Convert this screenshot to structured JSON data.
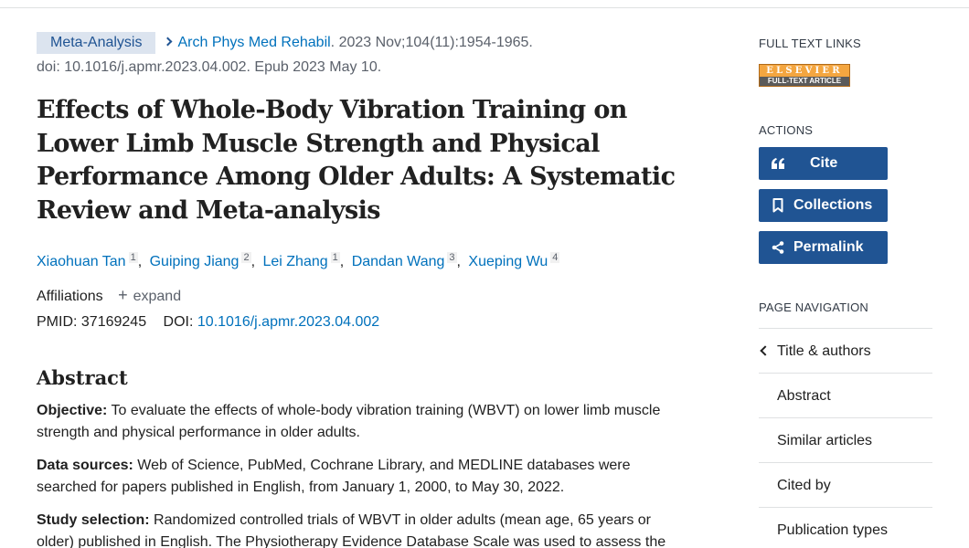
{
  "citation": {
    "article_type": "Meta-Analysis",
    "journal": "Arch Phys Med Rehabil",
    "date_pages": ". 2023 Nov;104(11):1954-1965.",
    "doi_epub": "doi: 10.1016/j.apmr.2023.04.002. Epub 2023 May 10."
  },
  "title": "Effects of Whole-Body Vibration Training on Lower Limb Muscle Strength and Physical Performance Among Older Adults: A Systematic Review and Meta-analysis",
  "authors": [
    {
      "name": "Xiaohuan Tan",
      "aff": "1"
    },
    {
      "name": "Guiping Jiang",
      "aff": "2"
    },
    {
      "name": "Lei Zhang",
      "aff": "1"
    },
    {
      "name": "Dandan Wang",
      "aff": "3"
    },
    {
      "name": "Xueping Wu",
      "aff": "4"
    }
  ],
  "author_sep": ",",
  "affiliations": {
    "label": "Affiliations",
    "plus": "+",
    "expand": "expand"
  },
  "ids": {
    "pmid_label": "PMID:",
    "pmid": "37169245",
    "doi_label": "DOI:",
    "doi": "10.1016/j.apmr.2023.04.002"
  },
  "abstract": {
    "heading": "Abstract",
    "sections": [
      {
        "label": "Objective:",
        "text": " To evaluate the effects of whole-body vibration training (WBVT) on lower limb muscle strength and physical performance in older adults."
      },
      {
        "label": "Data sources:",
        "text": " Web of Science, PubMed, Cochrane Library, and MEDLINE databases were searched for papers published in English, from January 1, 2000, to May 30, 2022."
      },
      {
        "label": "Study selection:",
        "text": " Randomized controlled trials of WBVT in older adults (mean age, 65 years or older) published in English. The Physiotherapy Evidence Database Scale was used to assess the"
      }
    ]
  },
  "sidebar": {
    "full_text_heading": "FULL TEXT LINKS",
    "elsevier_top": "ELSEVIER",
    "elsevier_bottom": "FULL-TEXT ARTICLE",
    "actions_heading": "ACTIONS",
    "actions": [
      {
        "label": "Cite",
        "icon": "quote-icon"
      },
      {
        "label": "Collections",
        "icon": "bookmark-icon"
      },
      {
        "label": "Permalink",
        "icon": "share-icon"
      }
    ],
    "nav_heading": "PAGE NAVIGATION",
    "nav_items": [
      "Title & authors",
      "Abstract",
      "Similar articles",
      "Cited by",
      "Publication types"
    ]
  },
  "colors": {
    "accent": "#205493",
    "link": "#0071bc",
    "tag_bg": "#dce4ef"
  }
}
